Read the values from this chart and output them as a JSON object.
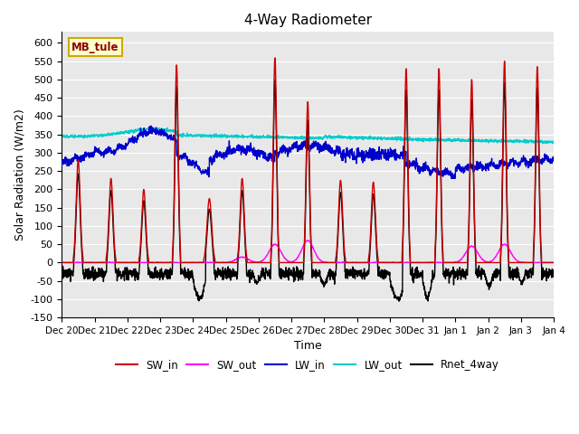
{
  "title": "4-Way Radiometer",
  "xlabel": "Time",
  "ylabel": "Solar Radiation (W/m2)",
  "ylim": [
    -150,
    630
  ],
  "yticks": [
    -150,
    -100,
    -50,
    0,
    50,
    100,
    150,
    200,
    250,
    300,
    350,
    400,
    450,
    500,
    550,
    600
  ],
  "station_label": "MB_tule",
  "colors": {
    "SW_in": "#cc0000",
    "SW_out": "#ff00ff",
    "LW_in": "#0000cc",
    "LW_out": "#00cccc",
    "Rnet_4way": "#000000"
  },
  "x_tick_labels": [
    "Dec 20",
    "Dec 21",
    "Dec 22",
    "Dec 23",
    "Dec 24",
    "Dec 25",
    "Dec 26",
    "Dec 27",
    "Dec 28",
    "Dec 29",
    "Dec 30",
    "Dec 31",
    "Jan 1",
    "Jan 2",
    "Jan 3",
    "Jan 4"
  ],
  "n_days": 15,
  "pts_per_day": 144,
  "background_color": "#e8e8e8",
  "grid_color": "#ffffff"
}
